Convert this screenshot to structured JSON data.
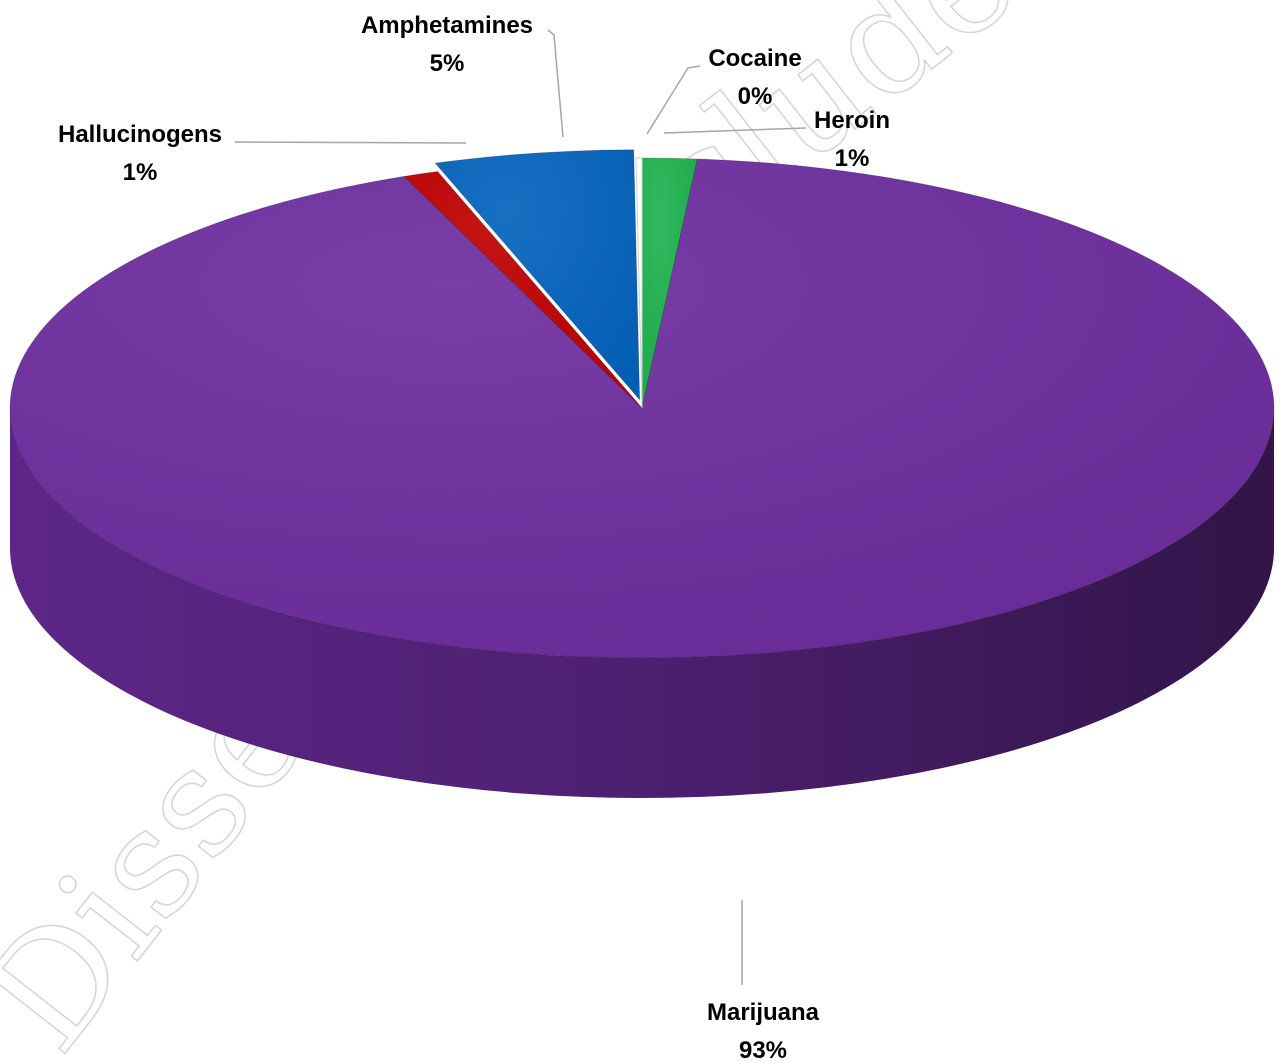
{
  "watermark": {
    "top_right": "cludes",
    "bottom_left": "Dissem"
  },
  "chart_data": {
    "type": "pie",
    "style": "3d",
    "title": "",
    "start": "top",
    "direction": "clockwise",
    "slices": [
      {
        "label": "Heroin",
        "value": 1.4,
        "display": "1%",
        "color": "#1fb350",
        "exploded": false
      },
      {
        "label": "Marijuana",
        "value": 92.6,
        "display": "93%",
        "color": "#6e2da0",
        "exploded": false
      },
      {
        "label": "Hallucinogens",
        "value": 0.9,
        "display": "1%",
        "color": "#c00000",
        "exploded": false
      },
      {
        "label": "Amphetamines",
        "value": 5.1,
        "display": "5%",
        "color": "#0464be",
        "exploded": true
      },
      {
        "label": "Cocaine",
        "value": 0.15,
        "display": "0%",
        "color": "#ffffff",
        "exploded": false
      }
    ]
  }
}
